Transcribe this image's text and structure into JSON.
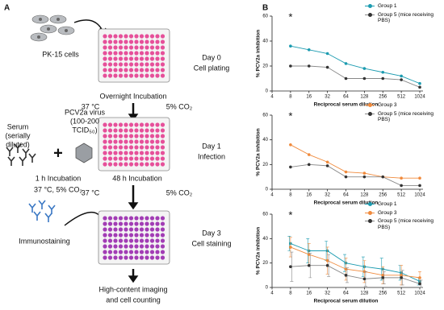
{
  "panel_labels": [
    "A",
    "B"
  ],
  "diagram": {
    "texts": [
      "PK-15 cells",
      "Day 0",
      "Cell plating",
      "Overnight Incubation",
      "37 °C",
      "5% CO₂",
      "PCV2a virus",
      "(100-200",
      "TCID₅₀)",
      "Serum",
      "(serially",
      "diluted)",
      "1 h Incubation",
      "37 °C, 5% CO₂",
      "Day 1",
      "Infection",
      "48 h Incubation",
      "37 °C",
      "5% CO₂",
      "Immunostaining",
      "Day 3",
      "Cell staining",
      "+",
      "High-content imaging",
      "and cell counting"
    ]
  },
  "chart_data": [
    {
      "type": "line",
      "ylabel": "% PCV2a inhibition",
      "xlabel": "Reciprocal serum dilution",
      "annotation": "*",
      "categories": [
        "4",
        "8",
        "16",
        "32",
        "64",
        "128",
        "256",
        "512",
        "1024"
      ],
      "ylim": [
        0,
        60
      ],
      "yticks": [
        0,
        20,
        40,
        60
      ],
      "series": [
        {
          "name": "Group 1",
          "color": "#1b9bb0",
          "values": [
            null,
            36,
            33,
            30,
            22,
            18,
            15,
            12,
            6
          ]
        },
        {
          "name": "Group 5 (mice receiving PBS)",
          "color": "#333333",
          "values": [
            null,
            20,
            20,
            19,
            10,
            10,
            10,
            9,
            3
          ]
        }
      ]
    },
    {
      "type": "line",
      "ylabel": "% PCV2a inhibition",
      "xlabel": "Reciprocal serum dilution",
      "annotation": "*",
      "categories": [
        "4",
        "8",
        "16",
        "32",
        "64",
        "128",
        "256",
        "512",
        "1024"
      ],
      "ylim": [
        0,
        60
      ],
      "yticks": [
        0,
        20,
        40,
        60
      ],
      "series": [
        {
          "name": "Group 3",
          "color": "#f08a3c",
          "values": [
            null,
            36,
            28,
            22,
            14,
            13,
            10,
            9,
            9
          ]
        },
        {
          "name": "Group 5 (mice receiving PBS)",
          "color": "#333333",
          "values": [
            null,
            18,
            20,
            19,
            10,
            10,
            10,
            3,
            3
          ]
        }
      ]
    },
    {
      "type": "line",
      "ylabel": "% PCV2a inhibition",
      "xlabel": "Reciprocal serum dilution",
      "annotation": "*",
      "categories": [
        "4",
        "8",
        "16",
        "32",
        "64",
        "128",
        "256",
        "512",
        "1024"
      ],
      "ylim": [
        0,
        60
      ],
      "yticks": [
        0,
        20,
        40,
        60
      ],
      "series": [
        {
          "name": "Group 1",
          "color": "#1b9bb0",
          "values": [
            null,
            36,
            30,
            30,
            20,
            17,
            15,
            12,
            5
          ],
          "errors": [
            null,
            6,
            10,
            8,
            7,
            8,
            9,
            6,
            3
          ]
        },
        {
          "name": "Group 3",
          "color": "#f08a3c",
          "values": [
            null,
            33,
            27,
            22,
            15,
            13,
            10,
            10,
            8
          ],
          "errors": [
            null,
            8,
            9,
            11,
            9,
            9,
            7,
            8,
            5
          ]
        },
        {
          "name": "Group 5 (mice receiving PBS)",
          "color": "#333333",
          "values": [
            null,
            17,
            18,
            18,
            10,
            7,
            8,
            8,
            3
          ],
          "errors": [
            null,
            12,
            10,
            9,
            6,
            6,
            5,
            6,
            3
          ]
        }
      ]
    }
  ]
}
